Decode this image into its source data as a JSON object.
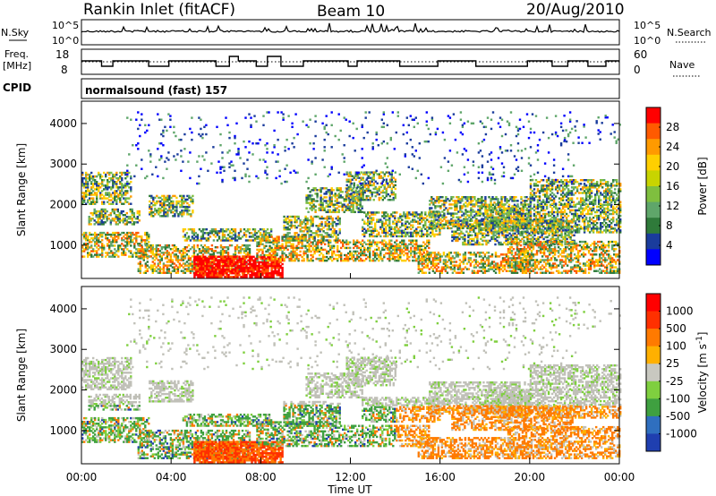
{
  "header": {
    "left": "Rankin Inlet (fitACF)",
    "center": "Beam 10",
    "right": "20/Aug/2010"
  },
  "top_panels": {
    "nsky_label": "N.Sky",
    "nsearch_label": "N.Search",
    "nsky_ticks": [
      "10^5",
      "10^0"
    ],
    "nsearch_ticks": [
      "10^5",
      "10^0"
    ],
    "freq_label_line1": "Freq.",
    "freq_label_line2": "[MHz]",
    "freq_ticks": [
      "18",
      "8"
    ],
    "nave_label": "Nave",
    "nave_ticks": [
      "60",
      "0"
    ],
    "cpid_label": "CPID",
    "cpid_text": "normalsound (fast) 157"
  },
  "chart_data": [
    {
      "type": "heatmap",
      "name": "power",
      "ylabel": "Slant Range [km]",
      "yticks": [
        1000,
        2000,
        3000,
        4000
      ],
      "ylim": [
        180,
        4550
      ],
      "xlim": [
        0,
        24
      ],
      "colorbar": {
        "label": "Power [dB]",
        "ticks": [
          "28",
          "24",
          "20",
          "16",
          "12",
          "8",
          "4"
        ],
        "colors": [
          "#0000ff",
          "#1a3c9c",
          "#2f7a3a",
          "#5fa66a",
          "#7fbf3f",
          "#c8d400",
          "#ffcf00",
          "#ff9a00",
          "#ff5a00",
          "#ff0000"
        ]
      }
    },
    {
      "type": "heatmap",
      "name": "velocity",
      "ylabel": "Slant Range [km]",
      "yticks": [
        1000,
        2000,
        3000,
        4000
      ],
      "ylim": [
        180,
        4550
      ],
      "xlim": [
        0,
        24
      ],
      "xlabel": "Time UT",
      "xticks": [
        "00:00",
        "04:00",
        "08:00",
        "12:00",
        "16:00",
        "20:00",
        "00:00"
      ],
      "colorbar": {
        "label": "Velocity [m s",
        "label_sup": "-1",
        "label_tail": "]",
        "ticks": [
          "1000",
          "500",
          "100",
          "25",
          "-25",
          "-100",
          "-500",
          "-1000"
        ],
        "colors": [
          "#1f3fb0",
          "#2f6fbf",
          "#3fa040",
          "#7fcf3f",
          "#c8c8c0",
          "#ffb000",
          "#ff7a00",
          "#ff3000",
          "#ff0000"
        ]
      }
    }
  ],
  "colors": {
    "ground_scatter": "#c0c0b8"
  }
}
